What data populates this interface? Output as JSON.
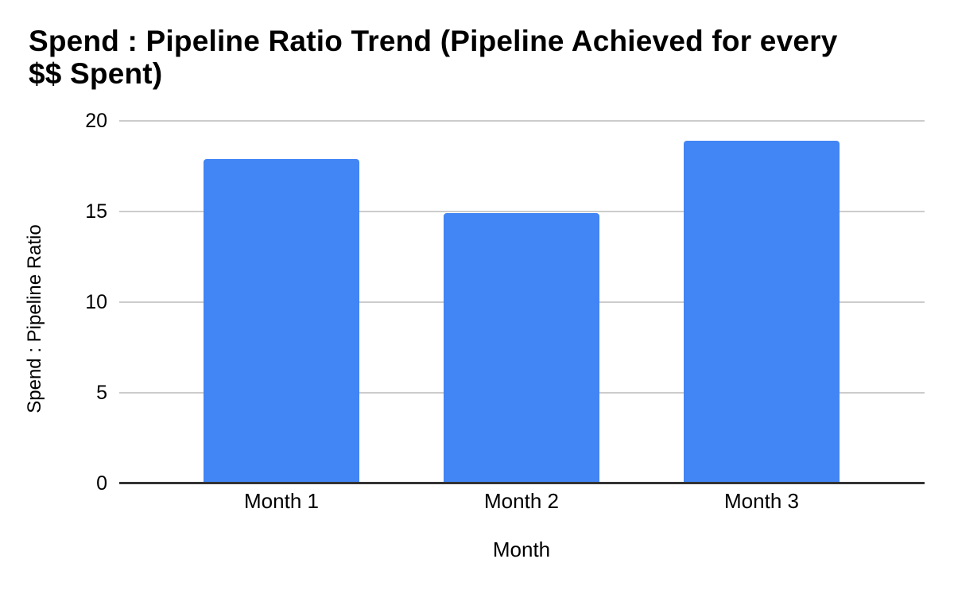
{
  "title_lines": [
    "Spend : Pipeline Ratio Trend (Pipeline Achieved for every",
    "$$ Spent)"
  ],
  "chart_data": {
    "type": "bar",
    "title": "Spend : Pipeline Ratio Trend (Pipeline Achieved for every $$ Spent)",
    "categories": [
      "Month 1",
      "Month 2",
      "Month 3"
    ],
    "values": [
      17.9,
      14.9,
      18.9
    ],
    "xlabel": "Month",
    "ylabel": "Spend : Pipeline Ratio",
    "ylim": [
      0,
      20
    ],
    "yticks": [
      0,
      5,
      10,
      15,
      20
    ],
    "grid": true,
    "legend_position": "none",
    "colors": {
      "bar": "#4285f4",
      "gridline": "#cccccc",
      "axis": "#333333",
      "text": "#000000",
      "background": "#ffffff"
    }
  }
}
